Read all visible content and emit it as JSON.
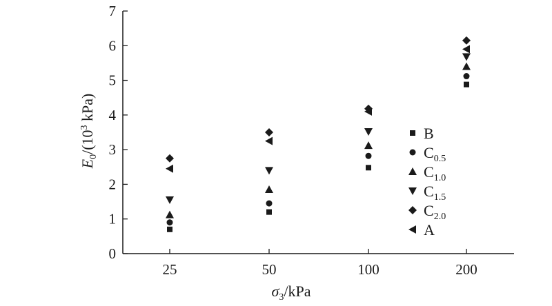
{
  "chart_data": {
    "type": "scatter",
    "title": "",
    "xlabel": {
      "symbol": "σ",
      "sub": "3",
      "unit": "/kPa"
    },
    "ylabel": {
      "symbol": "E",
      "sub": "0",
      "unit_pre": "/(10",
      "sup": "3",
      "unit_post": " kPa)"
    },
    "categories": [
      "25",
      "50",
      "100",
      "200"
    ],
    "ylim": [
      0,
      7
    ],
    "yticks": [
      "0",
      "1",
      "2",
      "3",
      "4",
      "5",
      "6",
      "7"
    ],
    "grid": false,
    "legend_position": "right, inside plot",
    "series": [
      {
        "name": "B",
        "name_main": "B",
        "name_sub": "",
        "marker": "square",
        "values": [
          0.7,
          1.2,
          2.48,
          4.88
        ]
      },
      {
        "name": "C0.5",
        "name_main": "C",
        "name_sub": "0.5",
        "marker": "circle",
        "values": [
          0.9,
          1.45,
          2.82,
          5.12
        ]
      },
      {
        "name": "C1.0",
        "name_main": "C",
        "name_sub": "1.0",
        "marker": "triangle-up",
        "values": [
          1.12,
          1.85,
          3.12,
          5.4
        ]
      },
      {
        "name": "C1.5",
        "name_main": "C",
        "name_sub": "1.5",
        "marker": "triangle-down",
        "values": [
          1.55,
          2.4,
          3.52,
          5.68
        ]
      },
      {
        "name": "C2.0",
        "name_main": "C",
        "name_sub": "2.0",
        "marker": "diamond",
        "values": [
          2.75,
          3.5,
          4.18,
          6.15
        ]
      },
      {
        "name": "A",
        "name_main": "A",
        "name_sub": "",
        "marker": "triangle-left",
        "values": [
          2.45,
          3.25,
          4.1,
          5.9
        ]
      }
    ],
    "marker_color": "#1a1a1a"
  }
}
